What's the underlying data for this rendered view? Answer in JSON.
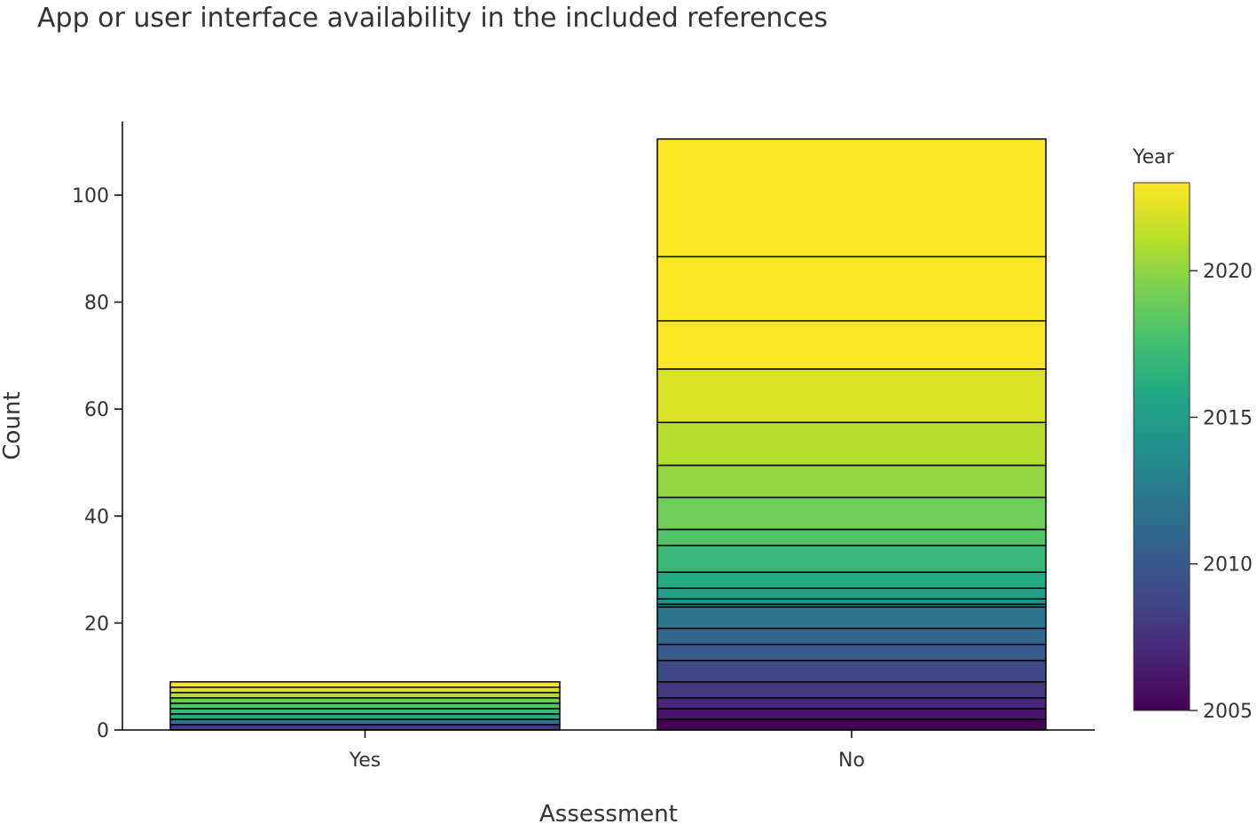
{
  "chart_data": {
    "type": "bar",
    "stacked": true,
    "title": "App or user interface availability in the included references",
    "xlabel": "Assessment",
    "ylabel": "Count",
    "ylim": [
      0,
      113
    ],
    "yticks": [
      0,
      20,
      40,
      60,
      80,
      100
    ],
    "categories": [
      "Yes",
      "No"
    ],
    "colorbar": {
      "title": "Year",
      "range": [
        2005,
        2023
      ],
      "ticks": [
        2005,
        2010,
        2015,
        2020
      ],
      "colorscale": "viridis"
    },
    "stacks": [
      {
        "category": "Yes",
        "segments": [
          {
            "year": 2008,
            "count": 1
          },
          {
            "year": 2012,
            "count": 1
          },
          {
            "year": 2016,
            "count": 1
          },
          {
            "year": 2017,
            "count": 1
          },
          {
            "year": 2018,
            "count": 1
          },
          {
            "year": 2019,
            "count": 1
          },
          {
            "year": 2021,
            "count": 1
          },
          {
            "year": 2022,
            "count": 1
          },
          {
            "year": 2023,
            "count": 1
          }
        ]
      },
      {
        "category": "No",
        "segments": [
          {
            "year": 2005,
            "count": 2
          },
          {
            "year": 2006,
            "count": 2
          },
          {
            "year": 2007,
            "count": 2
          },
          {
            "year": 2008,
            "count": 3
          },
          {
            "year": 2009,
            "count": 4
          },
          {
            "year": 2010,
            "count": 3
          },
          {
            "year": 2011,
            "count": 3
          },
          {
            "year": 2012,
            "count": 4
          },
          {
            "year": 2013,
            "count": 0.5
          },
          {
            "year": 2014,
            "count": 1
          },
          {
            "year": 2015,
            "count": 2
          },
          {
            "year": 2016,
            "count": 3
          },
          {
            "year": 2017,
            "count": 5
          },
          {
            "year": 2018,
            "count": 3
          },
          {
            "year": 2019,
            "count": 6
          },
          {
            "year": 2020,
            "count": 6
          },
          {
            "year": 2021,
            "count": 8
          },
          {
            "year": 2022,
            "count": 10
          },
          {
            "year": 2023,
            "count": 9
          },
          {
            "year": 2024,
            "count": 12
          },
          {
            "year": 2025,
            "count": 22
          }
        ]
      }
    ]
  }
}
